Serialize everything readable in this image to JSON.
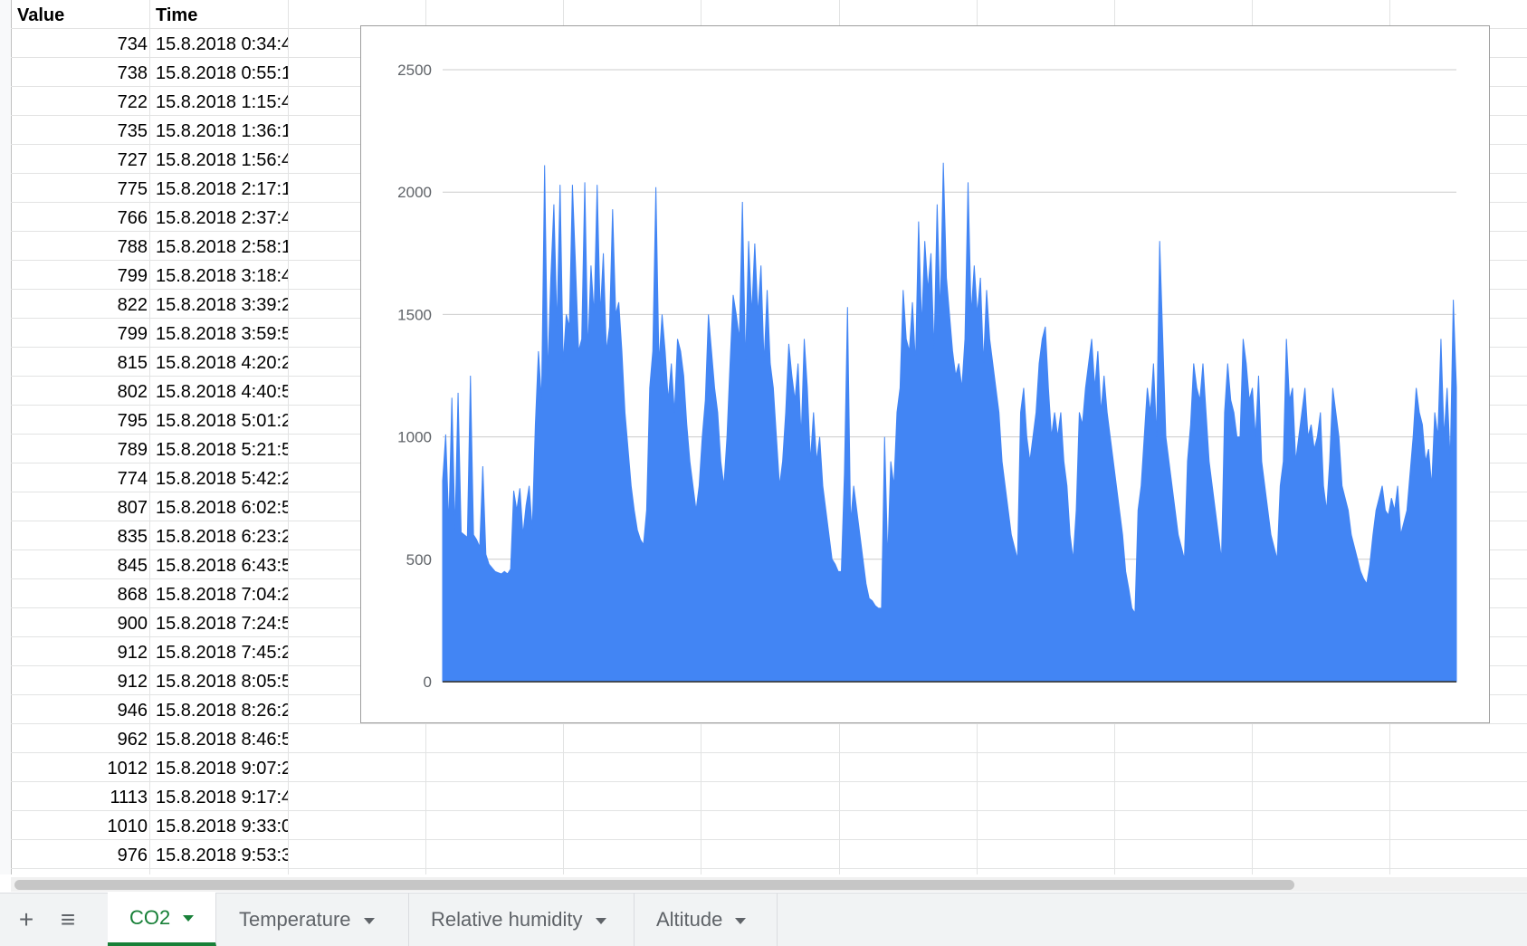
{
  "sheet": {
    "headers": {
      "value": "Value",
      "time": "Time"
    },
    "rows": [
      {
        "value": "734",
        "time": "15.8.2018 0:34:4"
      },
      {
        "value": "738",
        "time": "15.8.2018 0:55:1"
      },
      {
        "value": "722",
        "time": "15.8.2018 1:15:4"
      },
      {
        "value": "735",
        "time": "15.8.2018 1:36:1"
      },
      {
        "value": "727",
        "time": "15.8.2018 1:56:4"
      },
      {
        "value": "775",
        "time": "15.8.2018 2:17:1"
      },
      {
        "value": "766",
        "time": "15.8.2018 2:37:4"
      },
      {
        "value": "788",
        "time": "15.8.2018 2:58:1"
      },
      {
        "value": "799",
        "time": "15.8.2018 3:18:4"
      },
      {
        "value": "822",
        "time": "15.8.2018 3:39:2"
      },
      {
        "value": "799",
        "time": "15.8.2018 3:59:5"
      },
      {
        "value": "815",
        "time": "15.8.2018 4:20:2"
      },
      {
        "value": "802",
        "time": "15.8.2018 4:40:5"
      },
      {
        "value": "795",
        "time": "15.8.2018 5:01:2"
      },
      {
        "value": "789",
        "time": "15.8.2018 5:21:5"
      },
      {
        "value": "774",
        "time": "15.8.2018 5:42:2"
      },
      {
        "value": "807",
        "time": "15.8.2018 6:02:5"
      },
      {
        "value": "835",
        "time": "15.8.2018 6:23:2"
      },
      {
        "value": "845",
        "time": "15.8.2018 6:43:5"
      },
      {
        "value": "868",
        "time": "15.8.2018 7:04:2"
      },
      {
        "value": "900",
        "time": "15.8.2018 7:24:5"
      },
      {
        "value": "912",
        "time": "15.8.2018 7:45:2"
      },
      {
        "value": "912",
        "time": "15.8.2018 8:05:5"
      },
      {
        "value": "946",
        "time": "15.8.2018 8:26:2"
      },
      {
        "value": "962",
        "time": "15.8.2018 8:46:5"
      },
      {
        "value": "1012",
        "time": "15.8.2018 9:07:2"
      },
      {
        "value": "1113",
        "time": "15.8.2018 9:17:4"
      },
      {
        "value": "1010",
        "time": "15.8.2018 9:33:0"
      },
      {
        "value": "976",
        "time": "15.8.2018 9:53:3"
      }
    ]
  },
  "chart_data": {
    "type": "area",
    "title": "",
    "xlabel": "",
    "ylabel": "",
    "ylim": [
      0,
      2500
    ],
    "yticks": [
      "0",
      "500",
      "1000",
      "1500",
      "2000",
      "2500"
    ],
    "grid": true,
    "color": "#4285f4",
    "series": [
      {
        "name": "Value",
        "values": [
          820,
          1010,
          640,
          1160,
          620,
          1180,
          610,
          600,
          590,
          1250,
          600,
          580,
          550,
          880,
          520,
          480,
          465,
          450,
          445,
          440,
          450,
          440,
          460,
          780,
          700,
          790,
          600,
          720,
          800,
          620,
          1050,
          1350,
          1150,
          2110,
          1250,
          1650,
          1950,
          1450,
          2030,
          1300,
          1500,
          1450,
          2030,
          1700,
          1350,
          1400,
          2040,
          1350,
          1700,
          1500,
          2030,
          1500,
          1750,
          1350,
          1450,
          1930,
          1500,
          1550,
          1350,
          1100,
          950,
          800,
          700,
          620,
          580,
          560,
          700,
          1200,
          1350,
          2020,
          1300,
          1500,
          1350,
          1150,
          1300,
          1100,
          1400,
          1350,
          1250,
          1050,
          900,
          800,
          700,
          800,
          1000,
          1150,
          1500,
          1350,
          1200,
          1100,
          900,
          800,
          1000,
          1300,
          1580,
          1500,
          1400,
          1960,
          1300,
          1800,
          1500,
          1790,
          1500,
          1700,
          1300,
          1600,
          1300,
          1200,
          1000,
          800,
          900,
          1100,
          1380,
          1250,
          1150,
          1300,
          1000,
          1400,
          1200,
          900,
          1100,
          900,
          1000,
          800,
          700,
          600,
          500,
          480,
          450,
          450,
          850,
          1530,
          650,
          800,
          700,
          600,
          500,
          400,
          340,
          330,
          310,
          300,
          300,
          1000,
          500,
          900,
          800,
          1100,
          1200,
          1600,
          1400,
          1350,
          1550,
          1300,
          1880,
          1450,
          1800,
          1600,
          1750,
          1350,
          1950,
          1500,
          2120,
          1650,
          1500,
          1350,
          1250,
          1300,
          1200,
          1400,
          2040,
          1500,
          1700,
          1500,
          1650,
          1300,
          1600,
          1400,
          1300,
          1200,
          1100,
          900,
          800,
          700,
          600,
          550,
          500,
          1100,
          1200,
          1000,
          900,
          1000,
          1100,
          1300,
          1400,
          1450,
          1200,
          1000,
          1100,
          1000,
          1100,
          900,
          800,
          600,
          500,
          700,
          1100,
          1050,
          1200,
          1300,
          1400,
          1200,
          1350,
          1100,
          1250,
          1100,
          1000,
          900,
          800,
          700,
          600,
          450,
          380,
          300,
          280,
          700,
          800,
          1000,
          1200,
          1100,
          1300,
          1000,
          1800,
          1400,
          1000,
          900,
          800,
          700,
          600,
          550,
          500,
          900,
          1050,
          1300,
          1200,
          1150,
          1300,
          1100,
          900,
          800,
          700,
          600,
          500,
          1100,
          1300,
          1150,
          1100,
          1000,
          1000,
          1400,
          1300,
          1150,
          1200,
          1000,
          1250,
          900,
          800,
          700,
          600,
          550,
          500,
          800,
          900,
          1400,
          1150,
          1200,
          900,
          1000,
          1100,
          1200,
          1000,
          1050,
          950,
          1000,
          1100,
          800,
          700,
          900,
          1200,
          1100,
          1000,
          800,
          750,
          700,
          600,
          550,
          500,
          450,
          420,
          400,
          480,
          600,
          700,
          750,
          800,
          700,
          680,
          750,
          700,
          800,
          600,
          650,
          700,
          850,
          1000,
          1200,
          1100,
          1050,
          900,
          950,
          800,
          1100,
          1000,
          1400,
          1000,
          1200,
          900,
          1560,
          1200
        ]
      }
    ]
  },
  "tabs": {
    "add_icon": "+",
    "list_icon": "≡",
    "items": [
      {
        "label": "CO2",
        "active": true
      },
      {
        "label": "Temperature",
        "active": false
      },
      {
        "label": "Relative humidity",
        "active": false
      },
      {
        "label": "Altitude",
        "active": false
      }
    ]
  }
}
